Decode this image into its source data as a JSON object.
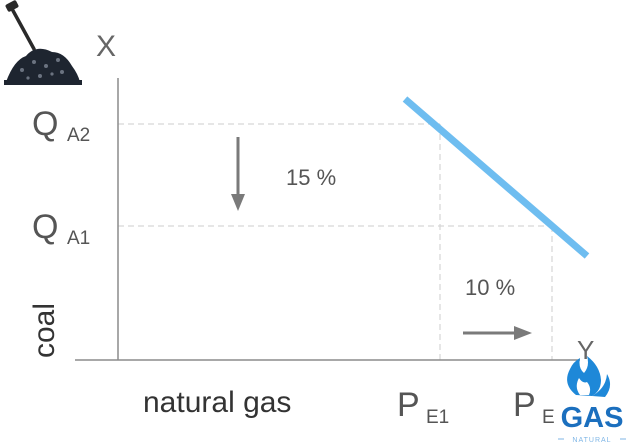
{
  "diagram": {
    "x_axis_title": "natural gas",
    "y_axis_title": "coal",
    "y_axis_letter": "X",
    "x_axis_letter": "Y",
    "y_ticks": [
      {
        "main": "Q",
        "sub": "A2"
      },
      {
        "main": "Q",
        "sub": "A1"
      }
    ],
    "x_ticks": [
      {
        "main": "P",
        "sub": "E1"
      },
      {
        "main": "P",
        "sub": "E"
      }
    ],
    "annotations": {
      "down_change": "15 %",
      "right_change": "10 %"
    },
    "logos": {
      "gas_logo_text": "GAS",
      "gas_logo_subtext": "NATURAL"
    },
    "colors": {
      "curve": "#6ebdf0",
      "axis": "#8c8c8c",
      "guide": "#d6d6d6",
      "arrow": "#7a7a7a",
      "gas_flame": "#1e88d8"
    }
  }
}
